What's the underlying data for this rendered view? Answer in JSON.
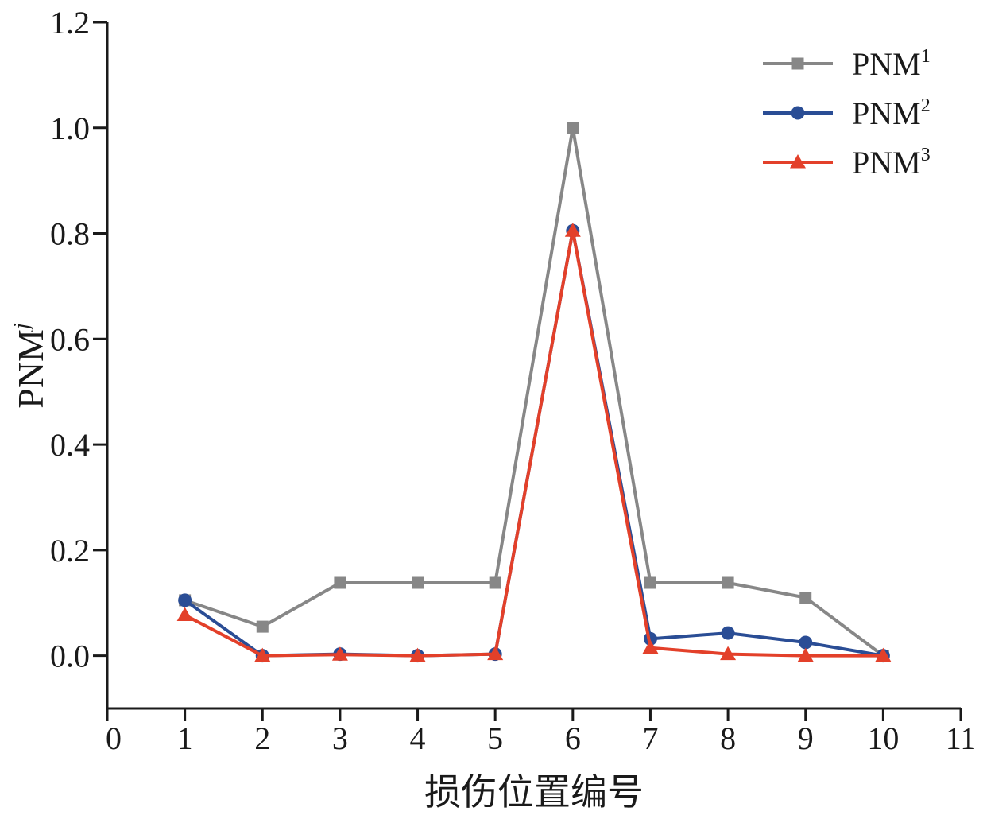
{
  "chart_data": {
    "type": "line",
    "title": "",
    "xlabel": "损伤位置编号",
    "ylabel_main": "PNM",
    "ylabel_sup": "j",
    "x": [
      1,
      2,
      3,
      4,
      5,
      6,
      7,
      8,
      9,
      10
    ],
    "xlim": [
      0,
      11
    ],
    "ylim": [
      -0.1,
      1.2
    ],
    "xticks": [
      "0",
      "1",
      "2",
      "3",
      "4",
      "5",
      "6",
      "7",
      "8",
      "9",
      "10",
      "11"
    ],
    "yticks": [
      "0.0",
      "0.2",
      "0.4",
      "0.6",
      "0.8",
      "1.0",
      "1.2"
    ],
    "grid": false,
    "legend_position": "top-right",
    "series": [
      {
        "name": "PNM",
        "sup": "1",
        "color": "#878787",
        "marker": "square",
        "values": [
          0.105,
          0.055,
          0.138,
          0.138,
          0.138,
          1.0,
          0.138,
          0.138,
          0.11,
          0.0
        ]
      },
      {
        "name": "PNM",
        "sup": "2",
        "color": "#2a4d95",
        "marker": "circle",
        "values": [
          0.105,
          0.0,
          0.003,
          0.0,
          0.003,
          0.805,
          0.032,
          0.043,
          0.025,
          0.0
        ]
      },
      {
        "name": "PNM",
        "sup": "3",
        "color": "#e3402a",
        "marker": "triangle",
        "values": [
          0.077,
          0.0,
          0.002,
          0.0,
          0.003,
          0.805,
          0.015,
          0.003,
          0.0,
          0.0
        ]
      }
    ]
  }
}
